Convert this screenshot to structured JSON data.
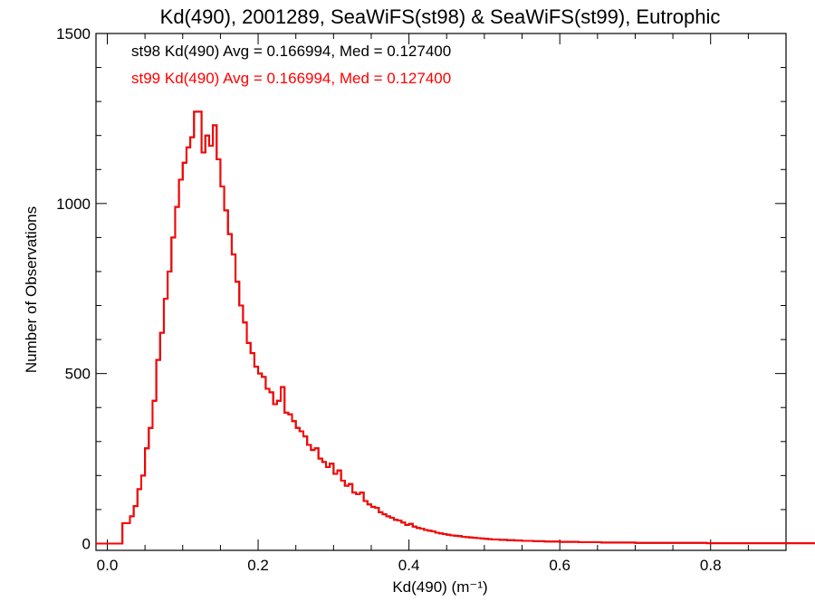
{
  "chart_data": {
    "type": "histogram",
    "title": "Kd(490), 2001289, SeaWiFS(st98) & SeaWiFS(st99), Eutrophic",
    "xlabel": "Kd(490) (m⁻¹)",
    "ylabel": "Number of Observations",
    "xlim": [
      -0.015,
      0.9
    ],
    "ylim": [
      -20,
      1500
    ],
    "x_ticks": [
      0.0,
      0.2,
      0.4,
      0.6,
      0.8
    ],
    "x_tick_labels": [
      "0.0",
      "0.2",
      "0.4",
      "0.6",
      "0.8"
    ],
    "y_ticks": [
      0,
      500,
      1000,
      1500
    ],
    "y_tick_labels": [
      "0",
      "500",
      "1000",
      "1500"
    ],
    "grid": false,
    "bin_width": 0.005,
    "bin_start": -0.015,
    "annotations": [
      {
        "text": "st98 Kd(490) Avg = 0.166994, Med = 0.127400",
        "color": "#000000"
      },
      {
        "text": "st99 Kd(490) Avg = 0.166994, Med = 0.127400",
        "color": "#ff0000"
      }
    ],
    "series": [
      {
        "name": "st98",
        "color": "#000000"
      },
      {
        "name": "st99",
        "color": "#ff0000"
      }
    ],
    "values": [
      0,
      0,
      0,
      0,
      0,
      0,
      0,
      60,
      60,
      80,
      110,
      160,
      200,
      280,
      340,
      420,
      540,
      620,
      720,
      800,
      900,
      990,
      1070,
      1120,
      1165,
      1195,
      1270,
      1270,
      1150,
      1200,
      1170,
      1230,
      1130,
      1050,
      980,
      910,
      850,
      770,
      700,
      650,
      590,
      560,
      520,
      500,
      490,
      455,
      445,
      410,
      420,
      460,
      385,
      380,
      360,
      340,
      330,
      315,
      290,
      275,
      280,
      250,
      240,
      225,
      235,
      205,
      215,
      185,
      170,
      175,
      150,
      145,
      150,
      125,
      115,
      108,
      105,
      92,
      86,
      80,
      76,
      70,
      68,
      62,
      55,
      58,
      50,
      46,
      44,
      40,
      38,
      36,
      32,
      30,
      28,
      26,
      24,
      23,
      22,
      20,
      19,
      18,
      17,
      16,
      15,
      14,
      13,
      12,
      12,
      11,
      11,
      10,
      10,
      9,
      9,
      8,
      8,
      8,
      7,
      7,
      7,
      6,
      6,
      6,
      6,
      5,
      5,
      5,
      5,
      5,
      4,
      4,
      4,
      4,
      4,
      4,
      3,
      3,
      3,
      3,
      3,
      3,
      3,
      3,
      3,
      2,
      2,
      2,
      2,
      2,
      2,
      2,
      2,
      2,
      2,
      2,
      2,
      2,
      2,
      2,
      2,
      2,
      2,
      2,
      1,
      1,
      1,
      1,
      1,
      1,
      1,
      1,
      1,
      1,
      1,
      1,
      1,
      1,
      1,
      1,
      1,
      1,
      1,
      1,
      1,
      1,
      1,
      1,
      1,
      1,
      1,
      1,
      1
    ]
  }
}
